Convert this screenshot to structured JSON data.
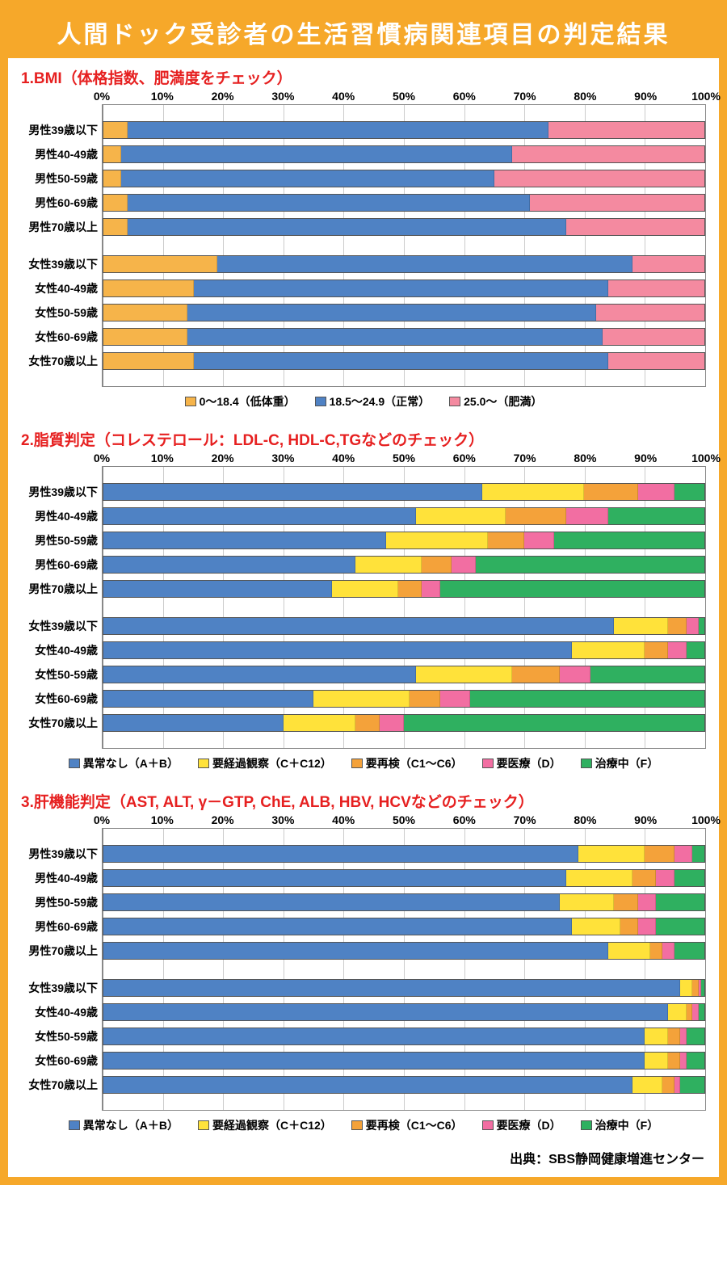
{
  "colors": {
    "border": "#f6a82a",
    "banner_bg": "#f6a82a",
    "section_title": "#e62020",
    "grid": "#cccccc",
    "wall": "#888888",
    "text": "#111111",
    "seg": {
      "orange": "#f6b44a",
      "blue": "#4f82c4",
      "pink": "#f48aa0",
      "yellow": "#ffe23a",
      "orange2": "#f4a23a",
      "pink2": "#f26ea2",
      "green": "#2fb060"
    }
  },
  "banner": "人間ドック受診者の生活習慣病関連項目の判定結果",
  "axis_ticks": [
    0,
    10,
    20,
    30,
    40,
    50,
    60,
    70,
    80,
    90,
    100
  ],
  "row_labels": [
    "男性39歳以下",
    "男性40-49歳",
    "男性50-59歳",
    "男性60-69歳",
    "男性70歳以上",
    "女性39歳以下",
    "女性40-49歳",
    "女性50-59歳",
    "女性60-69歳",
    "女性70歳以上"
  ],
  "source": "出典：SBS静岡健康増進センター",
  "charts": [
    {
      "title": "1.BMI（体格指数、肥満度をチェック）",
      "series_colors": [
        "orange",
        "blue",
        "pink"
      ],
      "legend": [
        "0～18.4（低体重）",
        "18.5～24.9（正常）",
        "25.0～（肥満）"
      ],
      "data": [
        [
          4,
          70,
          26
        ],
        [
          3,
          65,
          32
        ],
        [
          3,
          62,
          35
        ],
        [
          4,
          67,
          29
        ],
        [
          4,
          73,
          23
        ],
        [
          19,
          69,
          12
        ],
        [
          15,
          69,
          16
        ],
        [
          14,
          68,
          18
        ],
        [
          14,
          69,
          17
        ],
        [
          15,
          69,
          16
        ]
      ]
    },
    {
      "title": "2.脂質判定（コレステロール：LDL-C, HDL-C,TGなどのチェック）",
      "series_colors": [
        "blue",
        "yellow",
        "orange2",
        "pink2",
        "green"
      ],
      "legend": [
        "異常なし（A＋B）",
        "要経過観察（C＋C12）",
        "要再検（C1～C6）",
        "要医療（D）",
        "治療中（F）"
      ],
      "data": [
        [
          63,
          17,
          9,
          6,
          5
        ],
        [
          52,
          15,
          10,
          7,
          16
        ],
        [
          47,
          17,
          6,
          5,
          25
        ],
        [
          42,
          11,
          5,
          4,
          38
        ],
        [
          38,
          11,
          4,
          3,
          44
        ],
        [
          85,
          9,
          3,
          2,
          1
        ],
        [
          78,
          12,
          4,
          3,
          3
        ],
        [
          52,
          16,
          8,
          5,
          19
        ],
        [
          35,
          16,
          5,
          5,
          39
        ],
        [
          30,
          12,
          4,
          4,
          50
        ]
      ]
    },
    {
      "title": "3.肝機能判定（AST, ALT, γ－GTP, ChE, ALB, HBV, HCVなどのチェック）",
      "series_colors": [
        "blue",
        "yellow",
        "orange2",
        "pink2",
        "green"
      ],
      "legend": [
        "異常なし（A＋B）",
        "要経過観察（C＋C12）",
        "要再検（C1～C6）",
        "要医療（D）",
        "治療中（F）"
      ],
      "data": [
        [
          79,
          11,
          5,
          3,
          2
        ],
        [
          77,
          11,
          4,
          3,
          5
        ],
        [
          76,
          9,
          4,
          3,
          8
        ],
        [
          78,
          8,
          3,
          3,
          8
        ],
        [
          84,
          7,
          2,
          2,
          5
        ],
        [
          96,
          2,
          1,
          0.5,
          0.5
        ],
        [
          94,
          3,
          1,
          1,
          1
        ],
        [
          90,
          4,
          2,
          1,
          3
        ],
        [
          90,
          4,
          2,
          1,
          3
        ],
        [
          88,
          5,
          2,
          1,
          4
        ]
      ]
    }
  ]
}
